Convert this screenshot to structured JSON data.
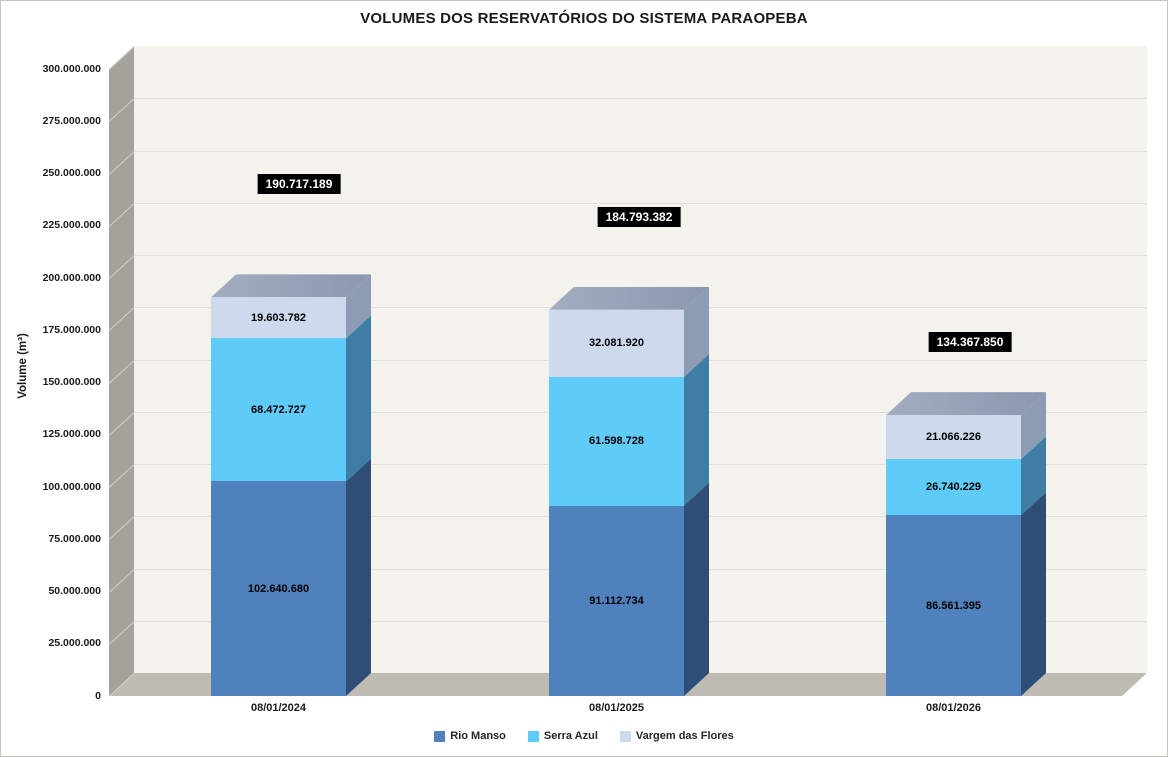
{
  "title": "VOLUMES DOS RESERVATÓRIOS DO SISTEMA PARAOPEBA",
  "chart_data": {
    "type": "bar",
    "subtype": "3d-stacked-column",
    "title": "VOLUMES DOS RESERVATÓRIOS DO SISTEMA PARAOPEBA",
    "xlabel": "",
    "ylabel": "Volume (m³)",
    "ylim": [
      0,
      300000000
    ],
    "grid": true,
    "legend_position": "bottom",
    "categories": [
      "08/01/2024",
      "08/01/2025",
      "08/01/2026"
    ],
    "series": [
      {
        "name": "Rio Manso",
        "values": [
          102640680,
          91112734,
          86561395
        ],
        "labels": [
          "102.640.680",
          "91.112.734",
          "86.561.395"
        ],
        "color": "#4F81BD",
        "side_color": "#2F4E77"
      },
      {
        "name": "Serra Azul",
        "values": [
          68472727,
          61598728,
          26740229
        ],
        "labels": [
          "68.472.727",
          "61.598.728",
          "26.740.229"
        ],
        "color": "#5FCBF8",
        "side_color": "#3E7EA4"
      },
      {
        "name": "Vargem das Flores",
        "values": [
          19603782,
          32081920,
          21066226
        ],
        "labels": [
          "19.603.782",
          "32.081.920",
          "21.066.226"
        ],
        "color": "#CDD9EC",
        "side_color": "#8C9CB4"
      }
    ],
    "totals": {
      "values": [
        190717189,
        184793382,
        134367850
      ],
      "labels": [
        "190.717.189",
        "184.793.382",
        "134.367.850"
      ]
    },
    "y_tick_values": [
      0,
      25000000,
      50000000,
      75000000,
      100000000,
      125000000,
      150000000,
      175000000,
      200000000,
      225000000,
      250000000,
      275000000,
      300000000
    ],
    "y_tick_labels": [
      "0",
      "25.000.000",
      "50.000.000",
      "75.000.000",
      "100.000.000",
      "125.000.000",
      "150.000.000",
      "175.000.000",
      "200.000.000",
      "225.000.000",
      "250.000.000",
      "275.000.000",
      "300.000.000"
    ]
  },
  "colors": {
    "back_wall": "#F4F2ED",
    "gridline": "#E2E0DB",
    "side_wall": "#A3A29B",
    "wall_diagonal": "#D2D0CA",
    "floor": "#BEBBB3",
    "bar_top_left": "#A2ADC1",
    "bar_top_right": "#8B98AE",
    "total_label_bg": "#000000",
    "total_label_text": "#FFFFFF"
  }
}
